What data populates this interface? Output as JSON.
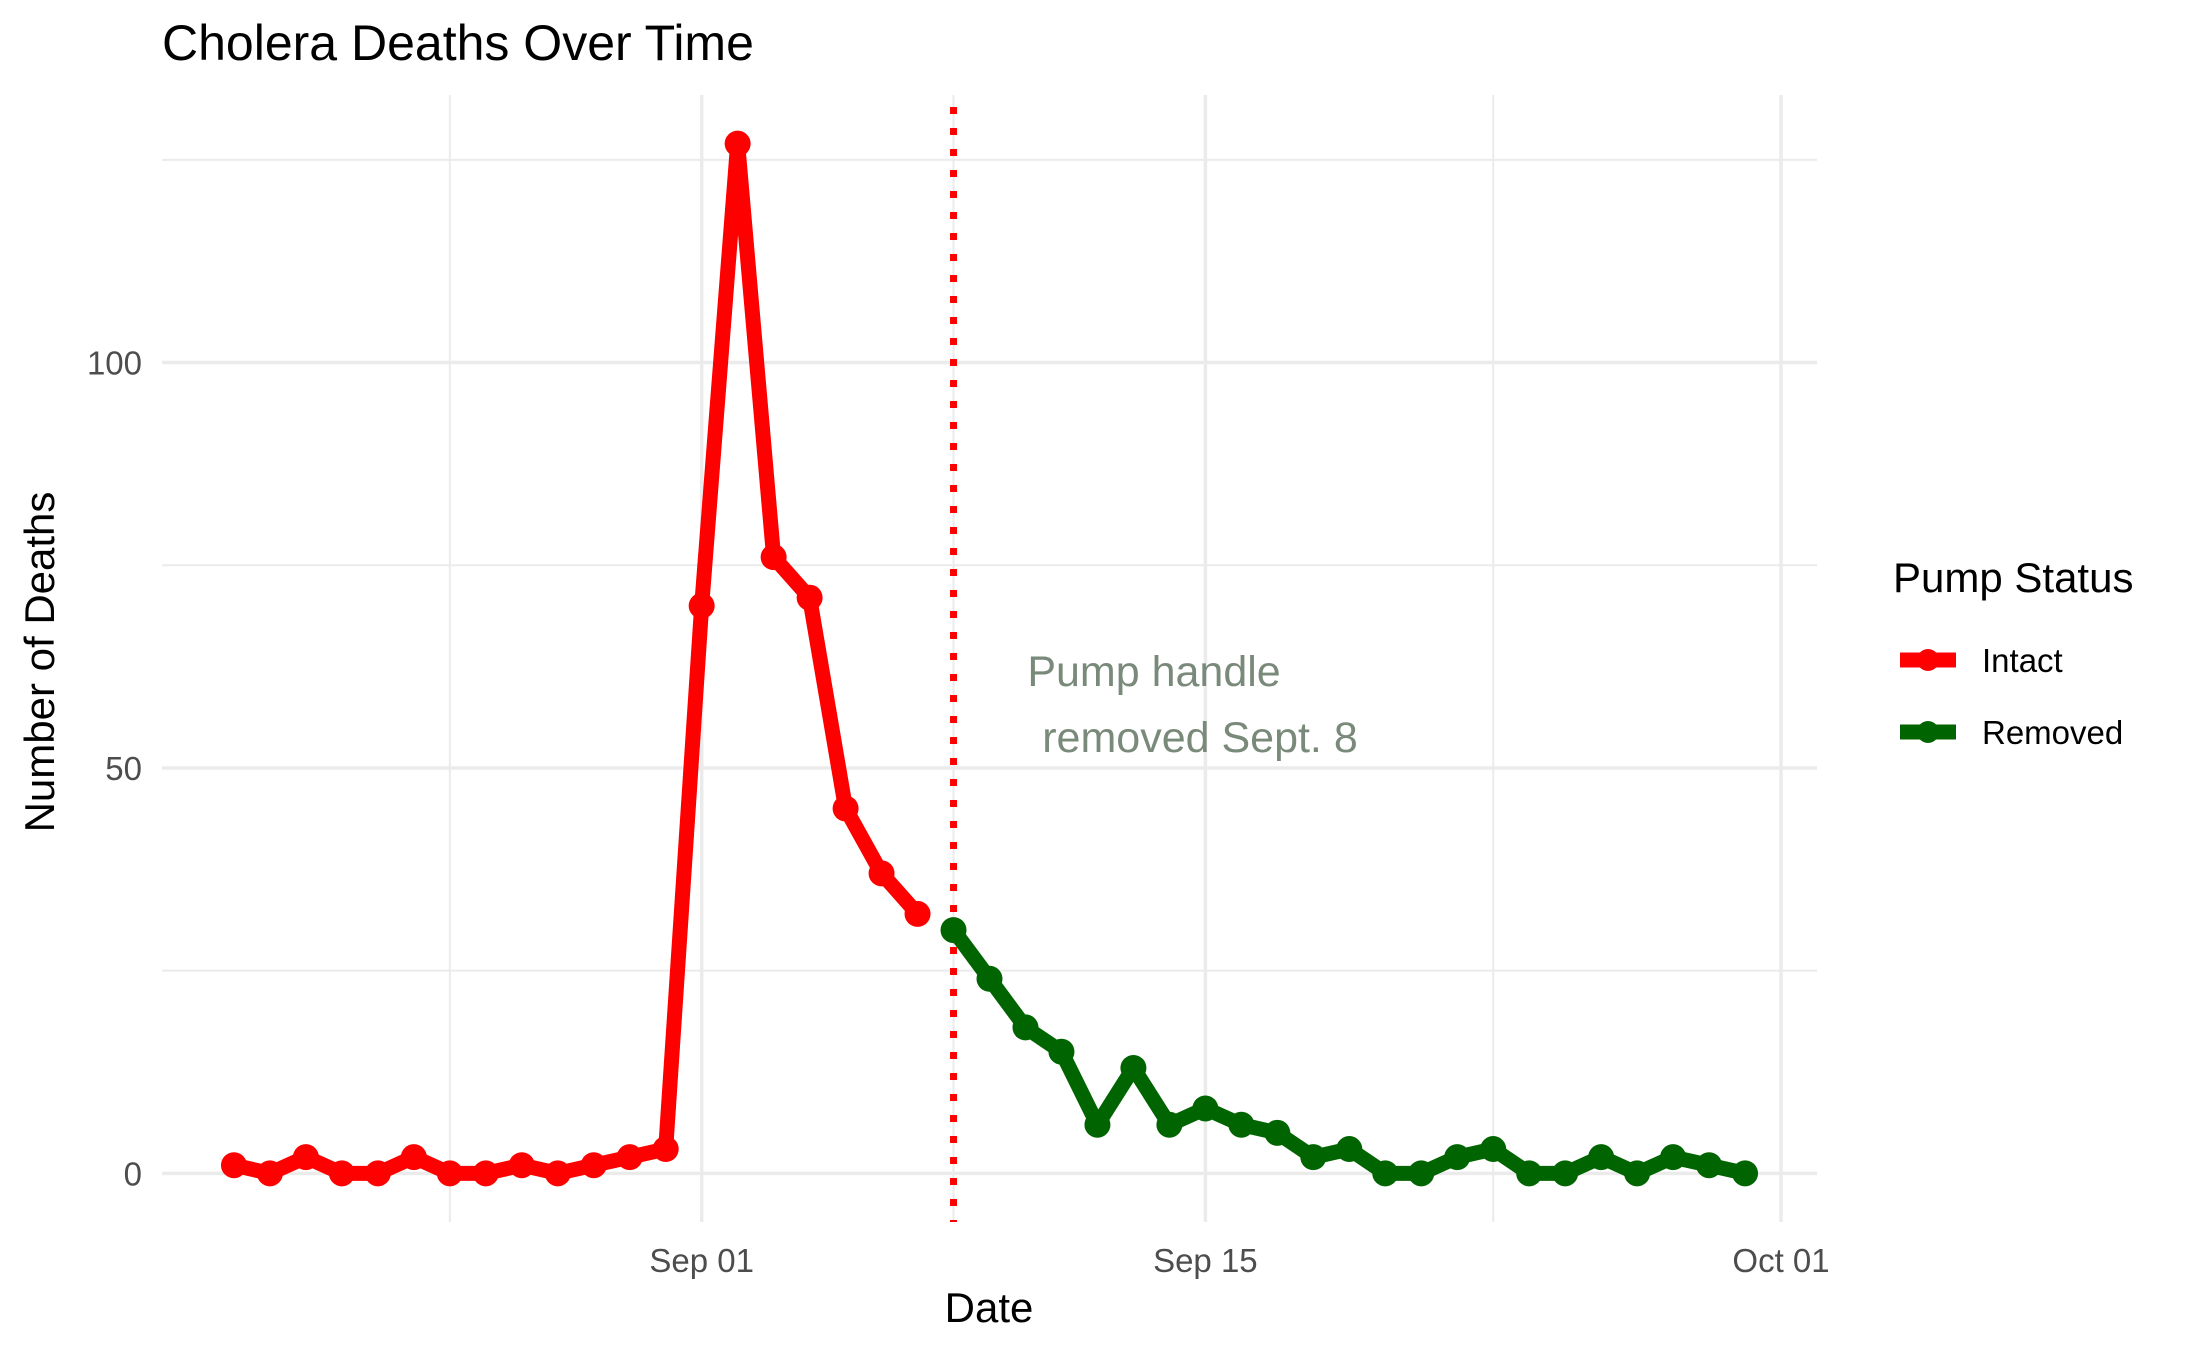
{
  "chart_data": {
    "type": "line",
    "title": "Cholera Deaths Over Time",
    "xlabel": "Date",
    "ylabel": "Number of Deaths",
    "x_ticks": [
      "Sep 01",
      "Sep 15",
      "Oct 01"
    ],
    "y_ticks": [
      "0",
      "50",
      "100"
    ],
    "ylim": [
      -6,
      133
    ],
    "xlim": [
      "1854-08-17",
      "1854-10-02"
    ],
    "grid": true,
    "legend": {
      "title": "Pump Status",
      "placement": "right"
    },
    "series": [
      {
        "name": "Intact",
        "color": "#ff0000",
        "points": [
          [
            "1854-08-19",
            1
          ],
          [
            "1854-08-20",
            0
          ],
          [
            "1854-08-21",
            2
          ],
          [
            "1854-08-22",
            0
          ],
          [
            "1854-08-23",
            0
          ],
          [
            "1854-08-24",
            2
          ],
          [
            "1854-08-25",
            0
          ],
          [
            "1854-08-26",
            0
          ],
          [
            "1854-08-27",
            1
          ],
          [
            "1854-08-28",
            0
          ],
          [
            "1854-08-29",
            1
          ],
          [
            "1854-08-30",
            2
          ],
          [
            "1854-08-31",
            3
          ],
          [
            "1854-09-01",
            70
          ],
          [
            "1854-09-02",
            127
          ],
          [
            "1854-09-03",
            76
          ],
          [
            "1854-09-04",
            71
          ],
          [
            "1854-09-05",
            45
          ],
          [
            "1854-09-06",
            37
          ],
          [
            "1854-09-07",
            32
          ]
        ]
      },
      {
        "name": "Removed",
        "color": "#006400",
        "points": [
          [
            "1854-09-08",
            30
          ],
          [
            "1854-09-09",
            24
          ],
          [
            "1854-09-10",
            18
          ],
          [
            "1854-09-11",
            15
          ],
          [
            "1854-09-12",
            6
          ],
          [
            "1854-09-13",
            13
          ],
          [
            "1854-09-14",
            6
          ],
          [
            "1854-09-15",
            8
          ],
          [
            "1854-09-16",
            6
          ],
          [
            "1854-09-17",
            5
          ],
          [
            "1854-09-18",
            2
          ],
          [
            "1854-09-19",
            3
          ],
          [
            "1854-09-20",
            0
          ],
          [
            "1854-09-21",
            0
          ],
          [
            "1854-09-22",
            2
          ],
          [
            "1854-09-23",
            3
          ],
          [
            "1854-09-24",
            0
          ],
          [
            "1854-09-25",
            0
          ],
          [
            "1854-09-26",
            2
          ],
          [
            "1854-09-27",
            0
          ],
          [
            "1854-09-28",
            2
          ],
          [
            "1854-09-29",
            1
          ],
          [
            "1854-09-30",
            0
          ]
        ]
      }
    ],
    "reference_line": {
      "date": "1854-09-08",
      "color": "#ff0000",
      "style": "dotted"
    },
    "annotation": {
      "lines": [
        "Pump handle",
        "removed Sept. 8"
      ],
      "color": "#7a8a7a"
    }
  }
}
